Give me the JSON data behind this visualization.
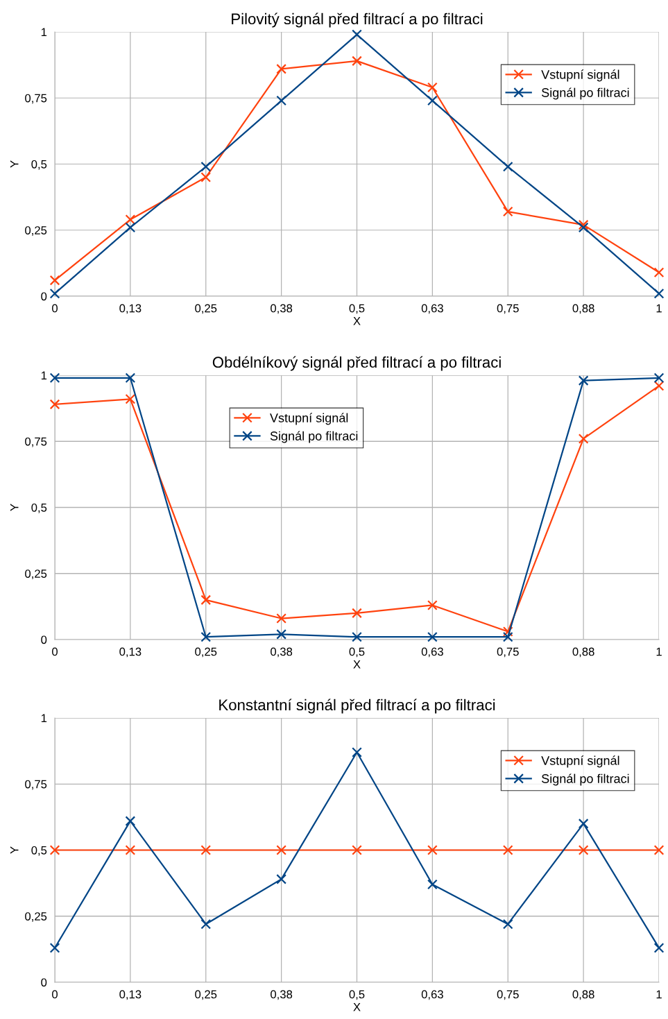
{
  "chart_data": [
    {
      "type": "line",
      "title": "Pilovitý signál před filtrací a po filtraci",
      "xlabel": "X",
      "ylabel": "Y",
      "x": [
        0,
        0.125,
        0.25,
        0.375,
        0.5,
        0.625,
        0.75,
        0.875,
        1
      ],
      "series": [
        {
          "name": "Vstupní signál",
          "color": "#ff420e",
          "values": [
            0.06,
            0.29,
            0.45,
            0.86,
            0.89,
            0.79,
            0.32,
            0.27,
            0.09
          ]
        },
        {
          "name": "Signál po filtraci",
          "color": "#004586",
          "values": [
            0.01,
            0.26,
            0.49,
            0.74,
            0.99,
            0.74,
            0.49,
            0.26,
            0.01
          ]
        }
      ],
      "xlim": [
        0,
        1
      ],
      "ylim": [
        0,
        1
      ],
      "xticks": [
        0,
        {
          "value": 0.125,
          "label": "0,13"
        },
        {
          "value": 0.25,
          "label": "0,25"
        },
        {
          "value": 0.375,
          "label": "0,38"
        },
        {
          "value": 0.5,
          "label": "0,5"
        },
        {
          "value": 0.625,
          "label": "0,63"
        },
        {
          "value": 0.75,
          "label": "0,75"
        },
        {
          "value": 0.875,
          "label": "0,88"
        },
        1
      ],
      "yticks": [
        0,
        {
          "value": 0.25,
          "label": "0,25"
        },
        {
          "value": 0.5,
          "label": "0,5"
        },
        {
          "value": 0.75,
          "label": "0,75"
        },
        1
      ],
      "grid": true,
      "legend": "top right",
      "marker": "cross",
      "line_style": "solid"
    },
    {
      "type": "line",
      "title": "Obdélníkový signál před filtrací a po filtraci",
      "xlabel": "X",
      "ylabel": "Y",
      "x": [
        0,
        0.125,
        0.25,
        0.375,
        0.5,
        0.625,
        0.75,
        0.875,
        1
      ],
      "series": [
        {
          "name": "Vstupní signál",
          "color": "#ff420e",
          "values": [
            0.89,
            0.91,
            0.15,
            0.08,
            0.1,
            0.13,
            0.03,
            0.76,
            0.96
          ]
        },
        {
          "name": "Signál po filtraci",
          "color": "#004586",
          "values": [
            0.99,
            0.99,
            0.01,
            0.02,
            0.01,
            0.01,
            0.01,
            0.98,
            0.99
          ]
        }
      ],
      "xlim": [
        0,
        1
      ],
      "ylim": [
        0,
        1
      ],
      "xticks": [
        0,
        {
          "value": 0.125,
          "label": "0,13"
        },
        {
          "value": 0.25,
          "label": "0,25"
        },
        {
          "value": 0.375,
          "label": "0,38"
        },
        {
          "value": 0.5,
          "label": "0,5"
        },
        {
          "value": 0.625,
          "label": "0,63"
        },
        {
          "value": 0.75,
          "label": "0,75"
        },
        {
          "value": 0.875,
          "label": "0,88"
        },
        1
      ],
      "yticks": [
        0,
        {
          "value": 0.25,
          "label": "0,25"
        },
        {
          "value": 0.5,
          "label": "0,5"
        },
        {
          "value": 0.75,
          "label": "0,75"
        },
        1
      ],
      "grid": true,
      "legend": "top center",
      "marker": "cross",
      "line_style": "solid"
    },
    {
      "type": "line",
      "title": "Konstantní signál před filtrací a po filtraci",
      "xlabel": "X",
      "ylabel": "Y",
      "x": [
        0,
        0.125,
        0.25,
        0.375,
        0.5,
        0.625,
        0.75,
        0.875,
        1
      ],
      "series": [
        {
          "name": "Vstupní signál",
          "color": "#ff420e",
          "values": [
            0.5,
            0.5,
            0.5,
            0.5,
            0.5,
            0.5,
            0.5,
            0.5,
            0.5
          ]
        },
        {
          "name": "Signál po filtraci",
          "color": "#004586",
          "values": [
            0.13,
            0.61,
            0.22,
            0.39,
            0.87,
            0.37,
            0.22,
            0.6,
            0.13
          ]
        }
      ],
      "xlim": [
        0,
        1
      ],
      "ylim": [
        0,
        1
      ],
      "xticks": [
        0,
        {
          "value": 0.125,
          "label": "0,13"
        },
        {
          "value": 0.25,
          "label": "0,25"
        },
        {
          "value": 0.375,
          "label": "0,38"
        },
        {
          "value": 0.5,
          "label": "0,5"
        },
        {
          "value": 0.625,
          "label": "0,63"
        },
        {
          "value": 0.75,
          "label": "0,75"
        },
        {
          "value": 0.875,
          "label": "0,88"
        },
        1
      ],
      "yticks": [
        0,
        {
          "value": 0.25,
          "label": "0,25"
        },
        {
          "value": 0.5,
          "label": "0,5"
        },
        {
          "value": 0.75,
          "label": "0,75"
        },
        1
      ],
      "grid": true,
      "legend": "top right",
      "marker": "cross",
      "line_style": "solid"
    }
  ]
}
